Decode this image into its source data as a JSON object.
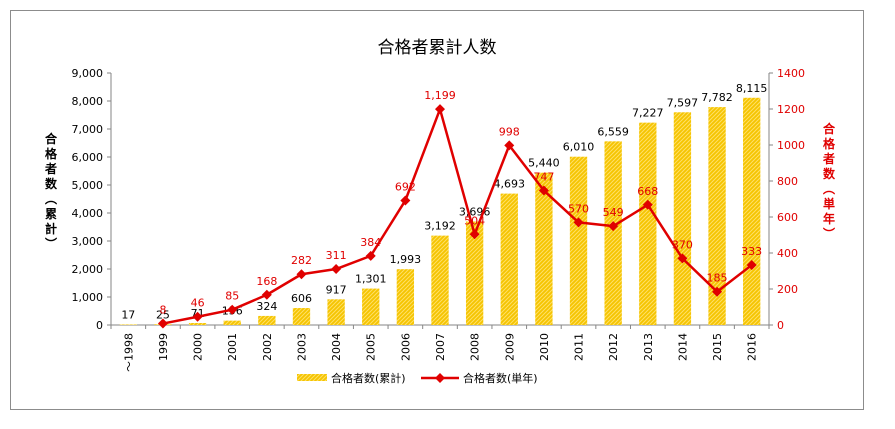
{
  "chart_data": {
    "type": "bar",
    "title": "合格者累計人数",
    "categories": [
      "～1998",
      "1999",
      "2000",
      "2001",
      "2002",
      "2003",
      "2004",
      "2005",
      "2006",
      "2007",
      "2008",
      "2009",
      "2010",
      "2011",
      "2012",
      "2013",
      "2014",
      "2015",
      "2016"
    ],
    "series": [
      {
        "name": "合格者数(累計)",
        "type": "bar",
        "axis": "left",
        "color": "#f2c200",
        "values": [
          17,
          25,
          71,
          156,
          324,
          606,
          917,
          1301,
          1993,
          3192,
          3696,
          4693,
          5440,
          6010,
          6559,
          7227,
          7597,
          7782,
          8115
        ],
        "labels": [
          "17",
          "25",
          "71",
          "156",
          "324",
          "606",
          "917",
          "1,301",
          "1,993",
          "3,192",
          "3,696",
          "4,693",
          "5,440",
          "6,010",
          "6,559",
          "7,227",
          "7,597",
          "7,782",
          "8,115"
        ]
      },
      {
        "name": "合格者数(単年)",
        "type": "line",
        "axis": "right",
        "color": "#e00000",
        "values": [
          null,
          8,
          46,
          85,
          168,
          282,
          311,
          384,
          692,
          1199,
          504,
          998,
          747,
          570,
          549,
          668,
          370,
          185,
          333
        ],
        "labels": [
          "",
          "8",
          "46",
          "85",
          "168",
          "282",
          "311",
          "384",
          "692",
          "1,199",
          "504",
          "998",
          "747",
          "570",
          "549",
          "668",
          "370",
          "185",
          "333"
        ]
      }
    ],
    "left_axis": {
      "label": "合格者数(累計)",
      "min": 0,
      "max": 9000,
      "step": 1000,
      "ticks": [
        "0",
        "1,000",
        "2,000",
        "3,000",
        "4,000",
        "5,000",
        "6,000",
        "7,000",
        "8,000",
        "9,000"
      ]
    },
    "right_axis": {
      "label": "合格者数(単年)",
      "min": 0,
      "max": 1400,
      "step": 200,
      "ticks": [
        "0",
        "200",
        "400",
        "600",
        "800",
        "1000",
        "1200",
        "1400"
      ]
    },
    "grid": false,
    "legend_position": "bottom"
  }
}
